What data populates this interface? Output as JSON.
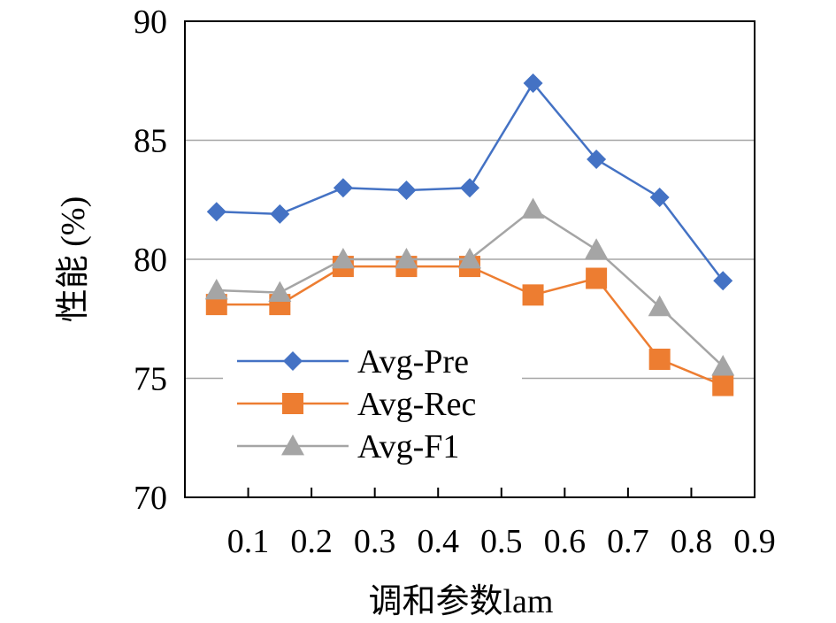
{
  "chart_data": {
    "type": "line",
    "x": [
      0.05,
      0.15,
      0.25,
      0.35,
      0.45,
      0.55,
      0.65,
      0.75,
      0.85
    ],
    "xticks": [
      "0.1",
      "0.2",
      "0.3",
      "0.4",
      "0.5",
      "0.6",
      "0.7",
      "0.8",
      "0.9"
    ],
    "xlim": [
      0,
      0.9
    ],
    "yticks": [
      "70",
      "75",
      "80",
      "85",
      "90"
    ],
    "ylim": [
      70,
      90
    ],
    "xlabel": "调和参数lam",
    "ylabel": "性能 (%)",
    "grid": "horizontal",
    "legend_position": "lower-left",
    "series": [
      {
        "name": "Avg-Pre",
        "color": "#4472C4",
        "marker": "diamond",
        "values": [
          82.0,
          81.9,
          83.0,
          82.9,
          83.0,
          87.4,
          84.2,
          82.6,
          79.1
        ]
      },
      {
        "name": "Avg-Rec",
        "color": "#ED7D31",
        "marker": "square",
        "values": [
          78.1,
          78.1,
          79.7,
          79.7,
          79.7,
          78.5,
          79.2,
          75.8,
          74.7
        ]
      },
      {
        "name": "Avg-F1",
        "color": "#A5A5A5",
        "marker": "triangle",
        "values": [
          78.7,
          78.6,
          80.0,
          80.0,
          80.0,
          82.1,
          80.4,
          78.0,
          75.5
        ]
      }
    ]
  }
}
